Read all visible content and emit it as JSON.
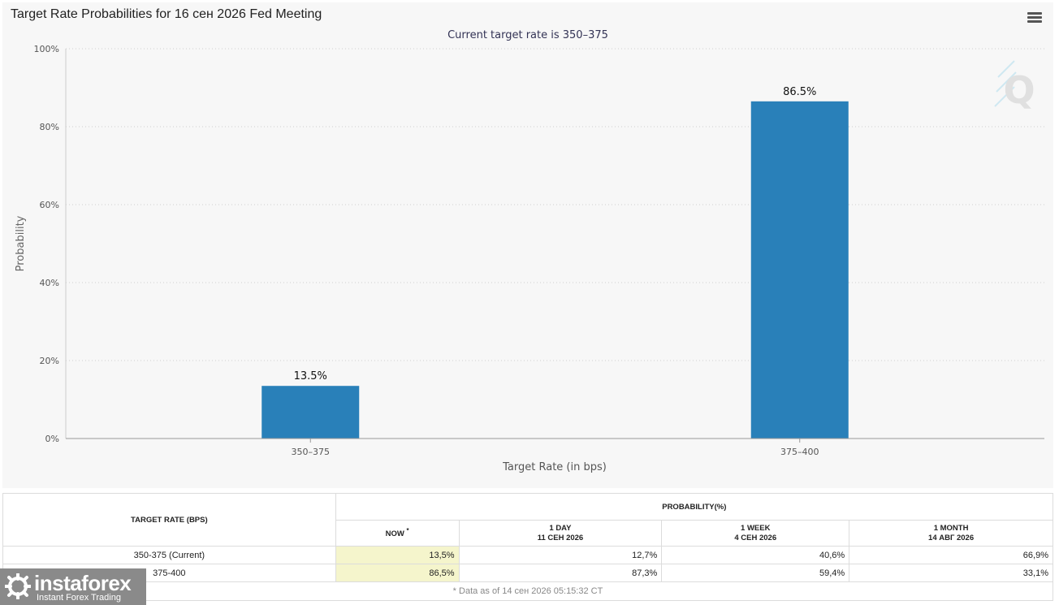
{
  "header": {
    "title": "Target Rate Probabilities for 16 сен 2026 Fed Meeting"
  },
  "chart_data": {
    "type": "bar",
    "subtitle": "Current target rate is 350–375",
    "xlabel": "Target Rate (in bps)",
    "ylabel": "Probability",
    "categories": [
      "350–375",
      "375–400"
    ],
    "values": [
      13.5,
      86.5
    ],
    "data_labels": [
      "13.5%",
      "86.5%"
    ],
    "ylim": [
      0,
      100
    ],
    "yticks": [
      0,
      20,
      40,
      60,
      80,
      100
    ],
    "ytick_labels": [
      "0%",
      "20%",
      "40%",
      "60%",
      "80%",
      "100%"
    ],
    "grid": true,
    "bar_color": "#2980b9"
  },
  "table": {
    "target_header": "TARGET RATE (BPS)",
    "probability_header": "PROBABILITY(%)",
    "columns": [
      {
        "line1": "NOW",
        "marker": "*",
        "line2": ""
      },
      {
        "line1": "1 DAY",
        "line2": "11 СЕН 2026"
      },
      {
        "line1": "1 WEEK",
        "line2": "4 СЕН 2026"
      },
      {
        "line1": "1 MONTH",
        "line2": "14 АВГ 2026"
      }
    ],
    "rows": [
      {
        "rate": "350-375 (Current)",
        "values": [
          "13,5%",
          "12,7%",
          "40,6%",
          "66,9%"
        ]
      },
      {
        "rate": "375-400",
        "values": [
          "86,5%",
          "87,3%",
          "59,4%",
          "33,1%"
        ]
      }
    ],
    "footnote": "* Data as of 14 сен 2026 05:15:32 CT"
  },
  "watermark": {
    "brand": "instaforex",
    "tagline": "Instant Forex Trading"
  },
  "icons": {
    "menu": "hamburger-menu-icon",
    "corner_logo": "q-logo-icon"
  }
}
